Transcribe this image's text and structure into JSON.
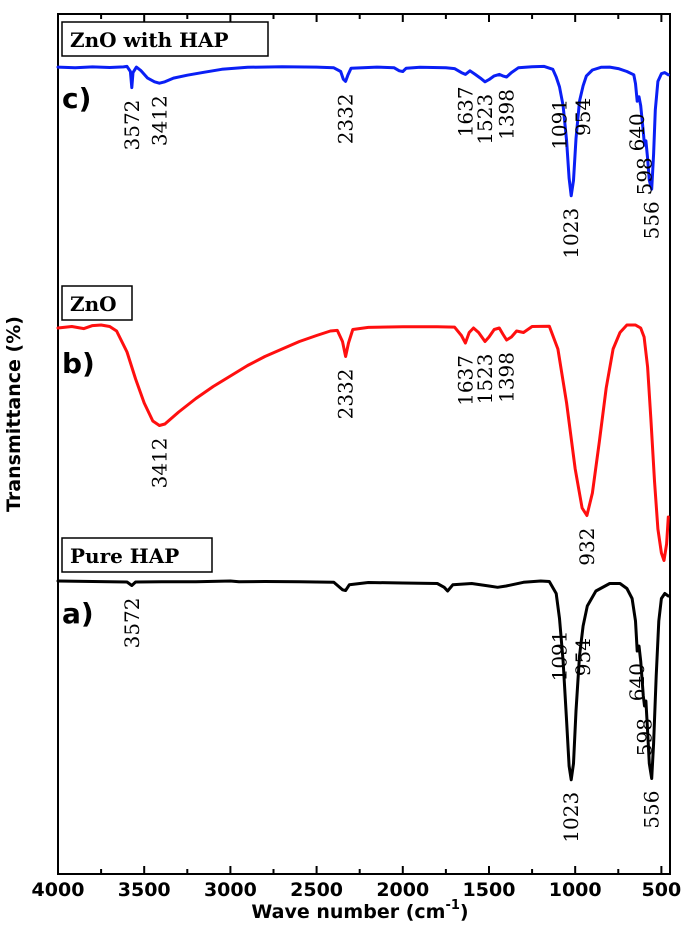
{
  "chart_data": {
    "type": "line",
    "xlabel": "Wave number (cm",
    "xlabel_sup": "-1",
    "xlabel_close": ")",
    "ylabel": "Transmittance (%)",
    "xlim": [
      4000,
      450
    ],
    "x_ticks": [
      "4000",
      "3500",
      "3000",
      "2500",
      "2000",
      "1500",
      "1000",
      "500"
    ],
    "x_tick_values": [
      4000,
      3500,
      3000,
      2500,
      2000,
      1500,
      1000,
      500
    ],
    "grid": false,
    "series": [
      {
        "name": "ZnO with HAP",
        "panel": "c)",
        "color": "#0a1ff5",
        "baseline": 0.06,
        "points": [
          [
            4000,
            0.05
          ],
          [
            3900,
            0.08
          ],
          [
            3800,
            0.04
          ],
          [
            3700,
            0.07
          ],
          [
            3620,
            0.04
          ],
          [
            3600,
            0.02
          ],
          [
            3580,
            0.25
          ],
          [
            3572,
            0.98
          ],
          [
            3565,
            0.3
          ],
          [
            3545,
            0.05
          ],
          [
            3520,
            0.2
          ],
          [
            3480,
            0.55
          ],
          [
            3440,
            0.72
          ],
          [
            3412,
            0.78
          ],
          [
            3380,
            0.72
          ],
          [
            3330,
            0.55
          ],
          [
            3250,
            0.42
          ],
          [
            3150,
            0.28
          ],
          [
            3050,
            0.15
          ],
          [
            2900,
            0.06
          ],
          [
            2700,
            0.03
          ],
          [
            2500,
            0.05
          ],
          [
            2400,
            0.08
          ],
          [
            2360,
            0.25
          ],
          [
            2345,
            0.6
          ],
          [
            2332,
            0.7
          ],
          [
            2318,
            0.4
          ],
          [
            2300,
            0.1
          ],
          [
            2150,
            0.05
          ],
          [
            2050,
            0.08
          ],
          [
            2020,
            0.22
          ],
          [
            2000,
            0.25
          ],
          [
            1980,
            0.1
          ],
          [
            1900,
            0.06
          ],
          [
            1750,
            0.08
          ],
          [
            1700,
            0.12
          ],
          [
            1660,
            0.3
          ],
          [
            1637,
            0.38
          ],
          [
            1610,
            0.22
          ],
          [
            1580,
            0.38
          ],
          [
            1550,
            0.55
          ],
          [
            1523,
            0.72
          ],
          [
            1500,
            0.62
          ],
          [
            1470,
            0.45
          ],
          [
            1440,
            0.38
          ],
          [
            1420,
            0.45
          ],
          [
            1398,
            0.5
          ],
          [
            1370,
            0.3
          ],
          [
            1330,
            0.08
          ],
          [
            1250,
            0.03
          ],
          [
            1180,
            0.02
          ],
          [
            1130,
            0.15
          ],
          [
            1110,
            0.5
          ],
          [
            1091,
            0.95
          ],
          [
            1070,
            1.8
          ],
          [
            1050,
            3.4
          ],
          [
            1035,
            5.1
          ],
          [
            1023,
            5.9
          ],
          [
            1010,
            5.2
          ],
          [
            995,
            3.3
          ],
          [
            975,
            1.6
          ],
          [
            954,
            0.9
          ],
          [
            935,
            0.45
          ],
          [
            900,
            0.18
          ],
          [
            850,
            0.06
          ],
          [
            800,
            0.05
          ],
          [
            750,
            0.12
          ],
          [
            700,
            0.25
          ],
          [
            660,
            0.4
          ],
          [
            650,
            0.8
          ],
          [
            640,
            1.6
          ],
          [
            630,
            1.4
          ],
          [
            620,
            1.8
          ],
          [
            605,
            3.0
          ],
          [
            598,
            3.6
          ],
          [
            590,
            3.4
          ],
          [
            580,
            4.2
          ],
          [
            570,
            5.2
          ],
          [
            556,
            5.6
          ],
          [
            545,
            4.0
          ],
          [
            535,
            2.0
          ],
          [
            520,
            0.7
          ],
          [
            500,
            0.35
          ],
          [
            480,
            0.3
          ],
          [
            460,
            0.4
          ]
        ],
        "labels": [
          {
            "x": 3572,
            "text": "3572"
          },
          {
            "x": 3412,
            "text": "3412"
          },
          {
            "x": 2332,
            "text": "2332"
          },
          {
            "x": 1637,
            "text": "1637"
          },
          {
            "x": 1523,
            "text": "1523"
          },
          {
            "x": 1398,
            "text": "1398"
          },
          {
            "x": 1091,
            "text": "1091"
          },
          {
            "x": 1023,
            "text": "1023"
          },
          {
            "x": 954,
            "text": "954"
          },
          {
            "x": 640,
            "text": "640"
          },
          {
            "x": 598,
            "text": "598"
          },
          {
            "x": 556,
            "text": "556"
          }
        ]
      },
      {
        "name": "ZnO",
        "panel": "b)",
        "color": "#ff0f0f",
        "baseline": 0.08,
        "points": [
          [
            4000,
            0.1
          ],
          [
            3920,
            0.05
          ],
          [
            3850,
            0.12
          ],
          [
            3800,
            0.02
          ],
          [
            3750,
            0.0
          ],
          [
            3700,
            0.05
          ],
          [
            3660,
            0.2
          ],
          [
            3600,
            0.9
          ],
          [
            3550,
            1.8
          ],
          [
            3500,
            2.6
          ],
          [
            3450,
            3.2
          ],
          [
            3412,
            3.35
          ],
          [
            3380,
            3.3
          ],
          [
            3300,
            2.9
          ],
          [
            3200,
            2.45
          ],
          [
            3100,
            2.05
          ],
          [
            3000,
            1.7
          ],
          [
            2900,
            1.35
          ],
          [
            2800,
            1.05
          ],
          [
            2700,
            0.8
          ],
          [
            2600,
            0.55
          ],
          [
            2500,
            0.35
          ],
          [
            2420,
            0.2
          ],
          [
            2380,
            0.18
          ],
          [
            2350,
            0.55
          ],
          [
            2332,
            1.05
          ],
          [
            2315,
            0.6
          ],
          [
            2290,
            0.15
          ],
          [
            2200,
            0.08
          ],
          [
            2000,
            0.06
          ],
          [
            1800,
            0.06
          ],
          [
            1700,
            0.07
          ],
          [
            1660,
            0.35
          ],
          [
            1637,
            0.6
          ],
          [
            1615,
            0.25
          ],
          [
            1590,
            0.1
          ],
          [
            1560,
            0.25
          ],
          [
            1523,
            0.55
          ],
          [
            1500,
            0.4
          ],
          [
            1470,
            0.15
          ],
          [
            1440,
            0.1
          ],
          [
            1420,
            0.3
          ],
          [
            1398,
            0.5
          ],
          [
            1370,
            0.4
          ],
          [
            1340,
            0.2
          ],
          [
            1300,
            0.25
          ],
          [
            1250,
            0.05
          ],
          [
            1150,
            0.04
          ],
          [
            1100,
            0.8
          ],
          [
            1050,
            2.6
          ],
          [
            1000,
            4.8
          ],
          [
            960,
            6.1
          ],
          [
            932,
            6.35
          ],
          [
            900,
            5.6
          ],
          [
            860,
            3.9
          ],
          [
            820,
            2.1
          ],
          [
            780,
            0.8
          ],
          [
            740,
            0.25
          ],
          [
            700,
            0.0
          ],
          [
            650,
            0.0
          ],
          [
            620,
            0.1
          ],
          [
            600,
            0.4
          ],
          [
            580,
            1.4
          ],
          [
            560,
            3.2
          ],
          [
            540,
            5.2
          ],
          [
            520,
            6.8
          ],
          [
            500,
            7.6
          ],
          [
            485,
            7.85
          ],
          [
            470,
            7.3
          ],
          [
            460,
            6.4
          ]
        ],
        "labels": [
          {
            "x": 3412,
            "text": "3412"
          },
          {
            "x": 2332,
            "text": "2332"
          },
          {
            "x": 1637,
            "text": "1637"
          },
          {
            "x": 1523,
            "text": "1523"
          },
          {
            "x": 1398,
            "text": "1398"
          },
          {
            "x": 932,
            "text": "932"
          }
        ]
      },
      {
        "name": "Pure HAP",
        "panel": "a)",
        "color": "#000000",
        "baseline": 0.05,
        "points": [
          [
            4000,
            0.0
          ],
          [
            3800,
            0.02
          ],
          [
            3700,
            0.03
          ],
          [
            3600,
            0.04
          ],
          [
            3572,
            0.18
          ],
          [
            3550,
            0.04
          ],
          [
            3400,
            0.03
          ],
          [
            3200,
            0.03
          ],
          [
            3000,
            0.0
          ],
          [
            2950,
            0.03
          ],
          [
            2800,
            0.02
          ],
          [
            2600,
            0.03
          ],
          [
            2400,
            0.05
          ],
          [
            2350,
            0.35
          ],
          [
            2332,
            0.38
          ],
          [
            2310,
            0.15
          ],
          [
            2200,
            0.06
          ],
          [
            2000,
            0.08
          ],
          [
            1800,
            0.1
          ],
          [
            1760,
            0.25
          ],
          [
            1740,
            0.4
          ],
          [
            1710,
            0.15
          ],
          [
            1600,
            0.1
          ],
          [
            1500,
            0.2
          ],
          [
            1450,
            0.25
          ],
          [
            1400,
            0.2
          ],
          [
            1300,
            0.05
          ],
          [
            1200,
            0.0
          ],
          [
            1150,
            0.02
          ],
          [
            1110,
            0.5
          ],
          [
            1091,
            1.5
          ],
          [
            1070,
            3.2
          ],
          [
            1050,
            5.6
          ],
          [
            1035,
            7.4
          ],
          [
            1023,
            7.95
          ],
          [
            1010,
            7.3
          ],
          [
            995,
            5.2
          ],
          [
            975,
            3.0
          ],
          [
            954,
            1.8
          ],
          [
            930,
            1.0
          ],
          [
            880,
            0.4
          ],
          [
            800,
            0.1
          ],
          [
            740,
            0.1
          ],
          [
            700,
            0.3
          ],
          [
            670,
            0.7
          ],
          [
            650,
            1.6
          ],
          [
            640,
            2.8
          ],
          [
            630,
            2.6
          ],
          [
            620,
            3.2
          ],
          [
            605,
            4.6
          ],
          [
            598,
            5.0
          ],
          [
            590,
            4.8
          ],
          [
            580,
            6.0
          ],
          [
            570,
            7.3
          ],
          [
            556,
            7.9
          ],
          [
            545,
            6.5
          ],
          [
            530,
            3.8
          ],
          [
            515,
            1.6
          ],
          [
            500,
            0.7
          ],
          [
            480,
            0.5
          ],
          [
            460,
            0.6
          ]
        ],
        "labels": [
          {
            "x": 3572,
            "text": "3572"
          },
          {
            "x": 1091,
            "text": "1091"
          },
          {
            "x": 1023,
            "text": "1023"
          },
          {
            "x": 954,
            "text": "954"
          },
          {
            "x": 640,
            "text": "640"
          },
          {
            "x": 598,
            "text": "598"
          },
          {
            "x": 556,
            "text": "556"
          }
        ]
      }
    ]
  }
}
